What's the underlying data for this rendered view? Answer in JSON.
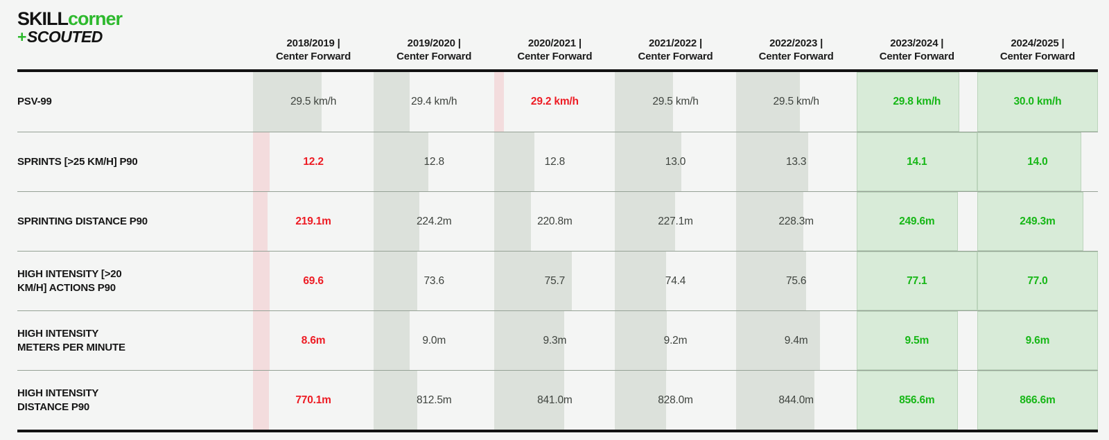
{
  "brand": {
    "skill": "SKILL",
    "corner": "corner",
    "plus": "+",
    "scouted": "SCOUTED"
  },
  "colors": {
    "background": "#f4f5f4",
    "brand_green": "#2db92d",
    "value_green": "#17b717",
    "value_red": "#ed1c24",
    "value_neutral": "#3e433e",
    "bar_green": "#d8ebd8",
    "bar_grey": "#dce1db",
    "bar_pink": "#f3dcdd",
    "rule_black": "#121212",
    "rule_thin": "#95a195"
  },
  "columns": [
    {
      "season": "2018/2019 |",
      "role": "Center Forward"
    },
    {
      "season": "2019/2020 |",
      "role": "Center Forward"
    },
    {
      "season": "2020/2021 |",
      "role": "Center Forward"
    },
    {
      "season": "2021/2022 |",
      "role": "Center Forward"
    },
    {
      "season": "2022/2023 |",
      "role": "Center Forward"
    },
    {
      "season": "2023/2024 |",
      "role": "Center Forward"
    },
    {
      "season": "2024/2025 |",
      "role": "Center Forward"
    }
  ],
  "rows": [
    {
      "label_lines": [
        "PSV-99"
      ],
      "cells": [
        {
          "value": "29.5 km/h",
          "status": "mid",
          "bar_pct": 57
        },
        {
          "value": "29.4 km/h",
          "status": "mid",
          "bar_pct": 30
        },
        {
          "value": "29.2 km/h",
          "status": "low",
          "bar_pct": 8
        },
        {
          "value": "29.5 km/h",
          "status": "mid",
          "bar_pct": 48
        },
        {
          "value": "29.5 km/h",
          "status": "mid",
          "bar_pct": 53
        },
        {
          "value": "29.8 km/h",
          "status": "high",
          "bar_pct": 85
        },
        {
          "value": "30.0 km/h",
          "status": "high",
          "bar_pct": 100
        }
      ]
    },
    {
      "label_lines": [
        "SPRINTS [>25 KM/H] P90"
      ],
      "cells": [
        {
          "value": "12.2",
          "status": "low",
          "bar_pct": 14
        },
        {
          "value": "12.8",
          "status": "mid",
          "bar_pct": 45
        },
        {
          "value": "12.8",
          "status": "mid",
          "bar_pct": 33
        },
        {
          "value": "13.0",
          "status": "mid",
          "bar_pct": 55
        },
        {
          "value": "13.3",
          "status": "mid",
          "bar_pct": 60
        },
        {
          "value": "14.1",
          "status": "high",
          "bar_pct": 100
        },
        {
          "value": "14.0",
          "status": "high",
          "bar_pct": 86
        }
      ]
    },
    {
      "label_lines": [
        "SPRINTING DISTANCE P90"
      ],
      "cells": [
        {
          "value": "219.1m",
          "status": "low",
          "bar_pct": 12
        },
        {
          "value": "224.2m",
          "status": "mid",
          "bar_pct": 38
        },
        {
          "value": "220.8m",
          "status": "mid",
          "bar_pct": 30
        },
        {
          "value": "227.1m",
          "status": "mid",
          "bar_pct": 50
        },
        {
          "value": "228.3m",
          "status": "mid",
          "bar_pct": 56
        },
        {
          "value": "249.6m",
          "status": "high",
          "bar_pct": 84
        },
        {
          "value": "249.3m",
          "status": "high",
          "bar_pct": 88
        }
      ]
    },
    {
      "label_lines": [
        "HIGH INTENSITY [>20",
        "KM/H] ACTIONS P90"
      ],
      "cells": [
        {
          "value": "69.6",
          "status": "low",
          "bar_pct": 14
        },
        {
          "value": "73.6",
          "status": "mid",
          "bar_pct": 36
        },
        {
          "value": "75.7",
          "status": "mid",
          "bar_pct": 64
        },
        {
          "value": "74.4",
          "status": "mid",
          "bar_pct": 42
        },
        {
          "value": "75.6",
          "status": "mid",
          "bar_pct": 58
        },
        {
          "value": "77.1",
          "status": "high",
          "bar_pct": 100
        },
        {
          "value": "77.0",
          "status": "high",
          "bar_pct": 100
        }
      ]
    },
    {
      "label_lines": [
        "HIGH INTENSITY",
        "METERS PER MINUTE"
      ],
      "cells": [
        {
          "value": "8.6m",
          "status": "low",
          "bar_pct": 14
        },
        {
          "value": "9.0m",
          "status": "mid",
          "bar_pct": 30
        },
        {
          "value": "9.3m",
          "status": "mid",
          "bar_pct": 58
        },
        {
          "value": "9.2m",
          "status": "mid",
          "bar_pct": 43
        },
        {
          "value": "9.4m",
          "status": "mid",
          "bar_pct": 70
        },
        {
          "value": "9.5m",
          "status": "high",
          "bar_pct": 84
        },
        {
          "value": "9.6m",
          "status": "high",
          "bar_pct": 100
        }
      ]
    },
    {
      "label_lines": [
        "HIGH INTENSITY",
        "DISTANCE P90"
      ],
      "cells": [
        {
          "value": "770.1m",
          "status": "low",
          "bar_pct": 13
        },
        {
          "value": "812.5m",
          "status": "mid",
          "bar_pct": 36
        },
        {
          "value": "841.0m",
          "status": "mid",
          "bar_pct": 58
        },
        {
          "value": "828.0m",
          "status": "mid",
          "bar_pct": 42
        },
        {
          "value": "844.0m",
          "status": "mid",
          "bar_pct": 65
        },
        {
          "value": "856.6m",
          "status": "high",
          "bar_pct": 84
        },
        {
          "value": "866.6m",
          "status": "high",
          "bar_pct": 100
        }
      ]
    }
  ],
  "chart_data": {
    "type": "table",
    "categories": [
      "2018/2019",
      "2019/2020",
      "2020/2021",
      "2021/2022",
      "2022/2023",
      "2023/2024",
      "2024/2025"
    ],
    "position": "Center Forward",
    "legend_semantics": {
      "red": "worst season value",
      "green": "best seasons",
      "grey": "neutral",
      "bar_width": "relative magnitude within metric"
    },
    "series": [
      {
        "name": "PSV-99 (km/h)",
        "values": [
          29.5,
          29.4,
          29.2,
          29.5,
          29.5,
          29.8,
          30.0
        ],
        "low_index": 2,
        "high_indices": [
          5,
          6
        ]
      },
      {
        "name": "Sprints [>25 km/h] P90",
        "values": [
          12.2,
          12.8,
          12.8,
          13.0,
          13.3,
          14.1,
          14.0
        ],
        "low_index": 0,
        "high_indices": [
          5,
          6
        ]
      },
      {
        "name": "Sprinting Distance P90 (m)",
        "values": [
          219.1,
          224.2,
          220.8,
          227.1,
          228.3,
          249.6,
          249.3
        ],
        "low_index": 0,
        "high_indices": [
          5,
          6
        ]
      },
      {
        "name": "High Intensity [>20 km/h] Actions P90",
        "values": [
          69.6,
          73.6,
          75.7,
          74.4,
          75.6,
          77.1,
          77.0
        ],
        "low_index": 0,
        "high_indices": [
          5,
          6
        ]
      },
      {
        "name": "High Intensity Meters per Minute (m)",
        "values": [
          8.6,
          9.0,
          9.3,
          9.2,
          9.4,
          9.5,
          9.6
        ],
        "low_index": 0,
        "high_indices": [
          5,
          6
        ]
      },
      {
        "name": "High Intensity Distance P90 (m)",
        "values": [
          770.1,
          812.5,
          841.0,
          828.0,
          844.0,
          856.6,
          866.6
        ],
        "low_index": 0,
        "high_indices": [
          5,
          6
        ]
      }
    ]
  }
}
